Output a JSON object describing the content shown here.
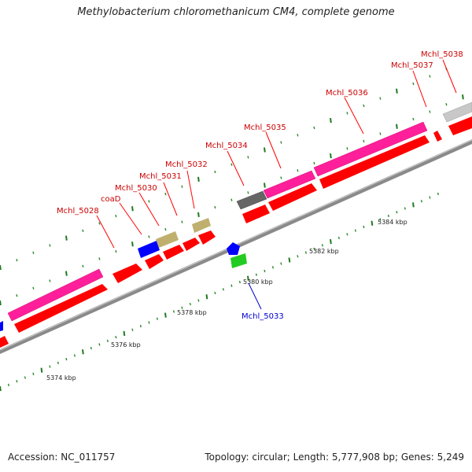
{
  "title": "Methylobacterium chloromethanicum CM4, complete genome",
  "footer": {
    "accession": "Accession: NC_011757",
    "summary": "Topology: circular; Length: 5,777,908 bp; Genes: 5,249"
  },
  "colors": {
    "backbone": "#8a8a8a",
    "tick_major": "#1f7a1f",
    "tick_minor": "#2a8a2a",
    "cds": "#ff0000",
    "pink": "#ff1f9a",
    "blue_gene": "#0000ff",
    "khaki_gene": "#bfb070",
    "dark_gene": "#555555",
    "gray_gene": "#c8c8c8",
    "green_gene": "#22cc22",
    "label_red": "#cc0000",
    "label_blue": "#0000cc"
  },
  "scale_labels": [
    "5374 kbp",
    "5376 kbp",
    "5378 kbp",
    "5380 kbp",
    "5382 kbp",
    "5384 kbp"
  ],
  "gene_labels": {
    "g5028": "Mchl_5028",
    "coaD": "coaD",
    "g5030": "Mchl_5030",
    "g5031": "Mchl_5031",
    "g5032": "Mchl_5032",
    "g5033": "Mchl_5033",
    "g5034": "Mchl_5034",
    "g5035": "Mchl_5035",
    "g5036": "Mchl_5036",
    "g5037": "Mchl_5037",
    "g5038": "Mchl_5038"
  }
}
